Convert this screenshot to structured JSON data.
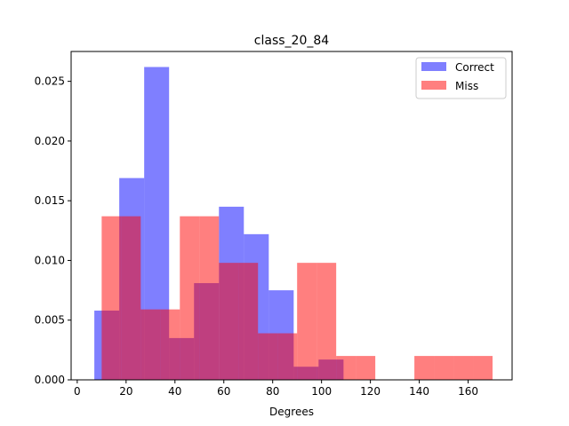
{
  "chart_data": {
    "type": "histogram",
    "title": "class_20_84",
    "xlabel": "Degrees",
    "ylabel": "",
    "xlim": [
      -2.5,
      178
    ],
    "ylim": [
      0,
      0.0275
    ],
    "xticks": [
      0,
      20,
      40,
      60,
      80,
      100,
      120,
      140,
      160
    ],
    "yticks": [
      0.0,
      0.005,
      0.01,
      0.015,
      0.02,
      0.025
    ],
    "ytick_labels": [
      "0.000",
      "0.005",
      "0.010",
      "0.015",
      "0.020",
      "0.025"
    ],
    "legend_position": "top-right",
    "series": [
      {
        "name": "Correct",
        "color": "#0000ff",
        "alpha": 0.5,
        "bins": [
          {
            "x0": 7.0,
            "x1": 17.2,
            "y": 0.0058
          },
          {
            "x0": 17.2,
            "x1": 27.4,
            "y": 0.0169
          },
          {
            "x0": 27.4,
            "x1": 37.6,
            "y": 0.0262
          },
          {
            "x0": 37.6,
            "x1": 47.8,
            "y": 0.0035
          },
          {
            "x0": 47.8,
            "x1": 58.0,
            "y": 0.0081
          },
          {
            "x0": 58.0,
            "x1": 68.2,
            "y": 0.0145
          },
          {
            "x0": 68.2,
            "x1": 78.4,
            "y": 0.0122
          },
          {
            "x0": 78.4,
            "x1": 88.6,
            "y": 0.0075
          },
          {
            "x0": 88.6,
            "x1": 98.8,
            "y": 0.0011
          },
          {
            "x0": 98.8,
            "x1": 109.0,
            "y": 0.0017
          }
        ]
      },
      {
        "name": "Miss",
        "color": "#ff0000",
        "alpha": 0.5,
        "bins": [
          {
            "x0": 10.0,
            "x1": 18.0,
            "y": 0.0137
          },
          {
            "x0": 18.0,
            "x1": 26.0,
            "y": 0.0137
          },
          {
            "x0": 26.0,
            "x1": 34.0,
            "y": 0.0059
          },
          {
            "x0": 34.0,
            "x1": 42.0,
            "y": 0.0059
          },
          {
            "x0": 42.0,
            "x1": 50.0,
            "y": 0.0137
          },
          {
            "x0": 50.0,
            "x1": 58.0,
            "y": 0.0137
          },
          {
            "x0": 58.0,
            "x1": 66.0,
            "y": 0.0098
          },
          {
            "x0": 66.0,
            "x1": 74.0,
            "y": 0.0098
          },
          {
            "x0": 74.0,
            "x1": 82.0,
            "y": 0.0039
          },
          {
            "x0": 82.0,
            "x1": 90.0,
            "y": 0.0039
          },
          {
            "x0": 90.0,
            "x1": 98.0,
            "y": 0.0098
          },
          {
            "x0": 98.0,
            "x1": 106.0,
            "y": 0.0098
          },
          {
            "x0": 106.0,
            "x1": 114.0,
            "y": 0.002
          },
          {
            "x0": 114.0,
            "x1": 122.0,
            "y": 0.002
          },
          {
            "x0": 122.0,
            "x1": 130.0,
            "y": 0.0
          },
          {
            "x0": 130.0,
            "x1": 138.0,
            "y": 0.0
          },
          {
            "x0": 138.0,
            "x1": 146.0,
            "y": 0.002
          },
          {
            "x0": 146.0,
            "x1": 154.0,
            "y": 0.002
          },
          {
            "x0": 154.0,
            "x1": 162.0,
            "y": 0.002
          },
          {
            "x0": 162.0,
            "x1": 170.0,
            "y": 0.002
          }
        ]
      }
    ]
  }
}
